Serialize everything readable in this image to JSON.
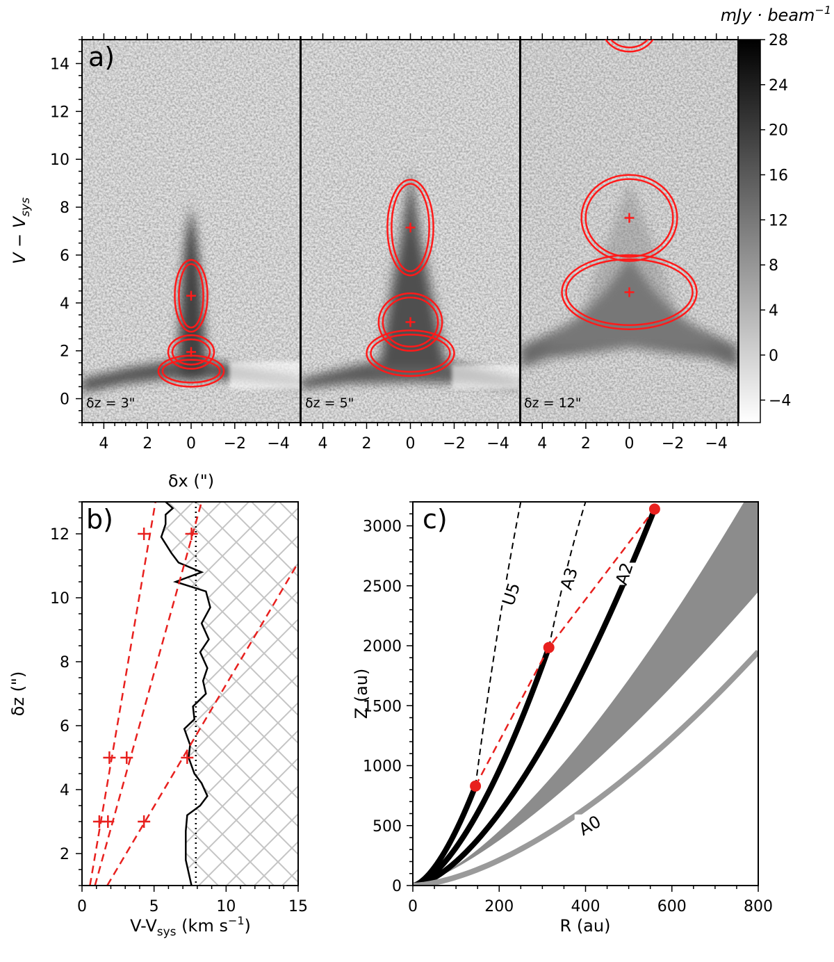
{
  "chart_data": [
    {
      "panel": "a",
      "type": "heatmap",
      "panel_label": "a)",
      "ylabel_main": "V − V",
      "ylabel_sub": "sys",
      "xlabel": "δx (\")",
      "ylim": [
        -1,
        15
      ],
      "xlim": [
        5,
        -5
      ],
      "yticks": [
        0,
        2,
        4,
        6,
        8,
        10,
        12,
        14
      ],
      "xticks": [
        4,
        2,
        0,
        -2,
        -4
      ],
      "colorbar": {
        "unit_label": "mJy · beam",
        "unit_exp": "−1",
        "min": -6,
        "max": 28,
        "ticks": [
          -4,
          0,
          4,
          8,
          12,
          16,
          20,
          24,
          28
        ]
      },
      "subpanels": [
        {
          "dz_label": "δz = 3\"",
          "structure": "narrow",
          "ellipses": [
            {
              "x": 0,
              "v": 4.3,
              "rx": 0.75,
              "rv": 1.5,
              "center_marked": true
            },
            {
              "x": 0,
              "v": 1.95,
              "rx": 1.05,
              "rv": 0.7,
              "center_marked": true
            },
            {
              "x": 0,
              "v": 1.15,
              "rx": 1.5,
              "rv": 0.65,
              "center_marked": false
            }
          ]
        },
        {
          "dz_label": "δz = 5\"",
          "structure": "medium",
          "ellipses": [
            {
              "x": 0,
              "v": 7.15,
              "rx": 1.05,
              "rv": 2.0,
              "center_marked": true
            },
            {
              "x": 0,
              "v": 3.2,
              "rx": 1.45,
              "rv": 1.2,
              "center_marked": true
            },
            {
              "x": 0,
              "v": 1.9,
              "rx": 2.0,
              "rv": 0.95,
              "center_marked": false
            }
          ]
        },
        {
          "dz_label": "δz = 12\"",
          "structure": "wide",
          "ellipses": [
            {
              "x": 0,
              "v": 15.5,
              "rx": 1.25,
              "rv": 1.0,
              "center_marked": false
            },
            {
              "x": 0,
              "v": 7.55,
              "rx": 2.2,
              "rv": 1.8,
              "center_marked": true
            },
            {
              "x": 0,
              "v": 4.45,
              "rx": 3.1,
              "rv": 1.55,
              "center_marked": true
            }
          ]
        }
      ]
    },
    {
      "panel": "b",
      "type": "line",
      "panel_label": "b)",
      "xlabel_main": "V-V",
      "xlabel_sub": "sys",
      "xlabel_unit": " (km s",
      "xlabel_exp": "−1",
      "xlabel_close": ")",
      "ylabel": "δz (\")",
      "xlim": [
        0,
        15
      ],
      "ylim": [
        1,
        13
      ],
      "xticks": [
        0,
        5,
        10,
        15
      ],
      "yticks": [
        2,
        4,
        6,
        8,
        10,
        12
      ],
      "dotted_vline_x": 7.9,
      "solid_profile": [
        [
          7.6,
          1
        ],
        [
          7.2,
          1.8
        ],
        [
          7.2,
          2.7
        ],
        [
          7.3,
          3.2
        ],
        [
          8.2,
          3.5
        ],
        [
          8.7,
          3.8
        ],
        [
          8.3,
          4.2
        ],
        [
          7.8,
          4.5
        ],
        [
          7.4,
          5.0
        ],
        [
          7.5,
          5.4
        ],
        [
          7.1,
          5.9
        ],
        [
          7.8,
          6.2
        ],
        [
          7.7,
          6.6
        ],
        [
          8.6,
          7.0
        ],
        [
          8.4,
          7.4
        ],
        [
          8.7,
          7.8
        ],
        [
          8.2,
          8.3
        ],
        [
          8.8,
          8.7
        ],
        [
          8.3,
          9.2
        ],
        [
          8.9,
          9.7
        ],
        [
          8.6,
          10.2
        ],
        [
          6.5,
          10.5
        ],
        [
          8.3,
          10.8
        ],
        [
          6.7,
          11.1
        ],
        [
          6.2,
          11.4
        ],
        [
          5.5,
          11.9
        ],
        [
          5.8,
          12.3
        ],
        [
          5.8,
          12.6
        ],
        [
          6.3,
          12.8
        ],
        [
          5.8,
          13
        ]
      ],
      "dashed_lines": [
        {
          "x_at_1": 0.55,
          "x_at_13": 5.1,
          "points": [
            [
              1.2,
              3
            ],
            [
              1.9,
              5
            ],
            [
              4.3,
              12
            ]
          ]
        },
        {
          "x_at_1": 0.9,
          "x_at_13": 8.3,
          "points": [
            [
              1.8,
              3
            ],
            [
              3.1,
              5
            ],
            [
              7.6,
              12
            ]
          ]
        },
        {
          "x_at_1": 1.75,
          "x_at_13": 17.5,
          "points": [
            [
              4.3,
              3
            ],
            [
              7.3,
              5
            ]
          ]
        }
      ]
    },
    {
      "panel": "c",
      "type": "line",
      "panel_label": "c)",
      "xlabel": "R (au)",
      "ylabel": "Z (au)",
      "xlim": [
        0,
        800
      ],
      "ylim": [
        0,
        3200
      ],
      "xticks": [
        0,
        200,
        400,
        600,
        800
      ],
      "yticks": [
        0,
        500,
        1000,
        1500,
        2000,
        2500,
        3000
      ],
      "shaded_band": {
        "lower_pow": 1.35,
        "lower_at_800": 2450,
        "upper_pow": 1.45,
        "upper_at_800": 3400
      },
      "curves": [
        {
          "name": "U5",
          "style": "dashed",
          "end_R": 145,
          "end_Z": 830,
          "ext_R": 250,
          "ext_Z": 3200,
          "curve_exp": 1.6,
          "label_R": 228,
          "label_Z": 2430
        },
        {
          "name": "A3",
          "style": "dashed",
          "end_R": 315,
          "end_Z": 1985,
          "ext_R": 400,
          "ext_Z": 3200,
          "curve_exp": 1.6,
          "label_R": 362,
          "label_Z": 2560
        },
        {
          "name": "A2",
          "style": "solid",
          "end_R": 560,
          "end_Z": 3140,
          "curve_exp": 1.6,
          "label_R": 490,
          "label_Z": 2600
        },
        {
          "name": "A0",
          "style": "gray",
          "end_R": 800,
          "end_Z": 1950,
          "curve_exp": 1.6,
          "label_R": 410,
          "label_Z": 500
        }
      ],
      "red_points": [
        [
          145,
          830
        ],
        [
          315,
          1985
        ],
        [
          560,
          3140
        ]
      ]
    }
  ]
}
